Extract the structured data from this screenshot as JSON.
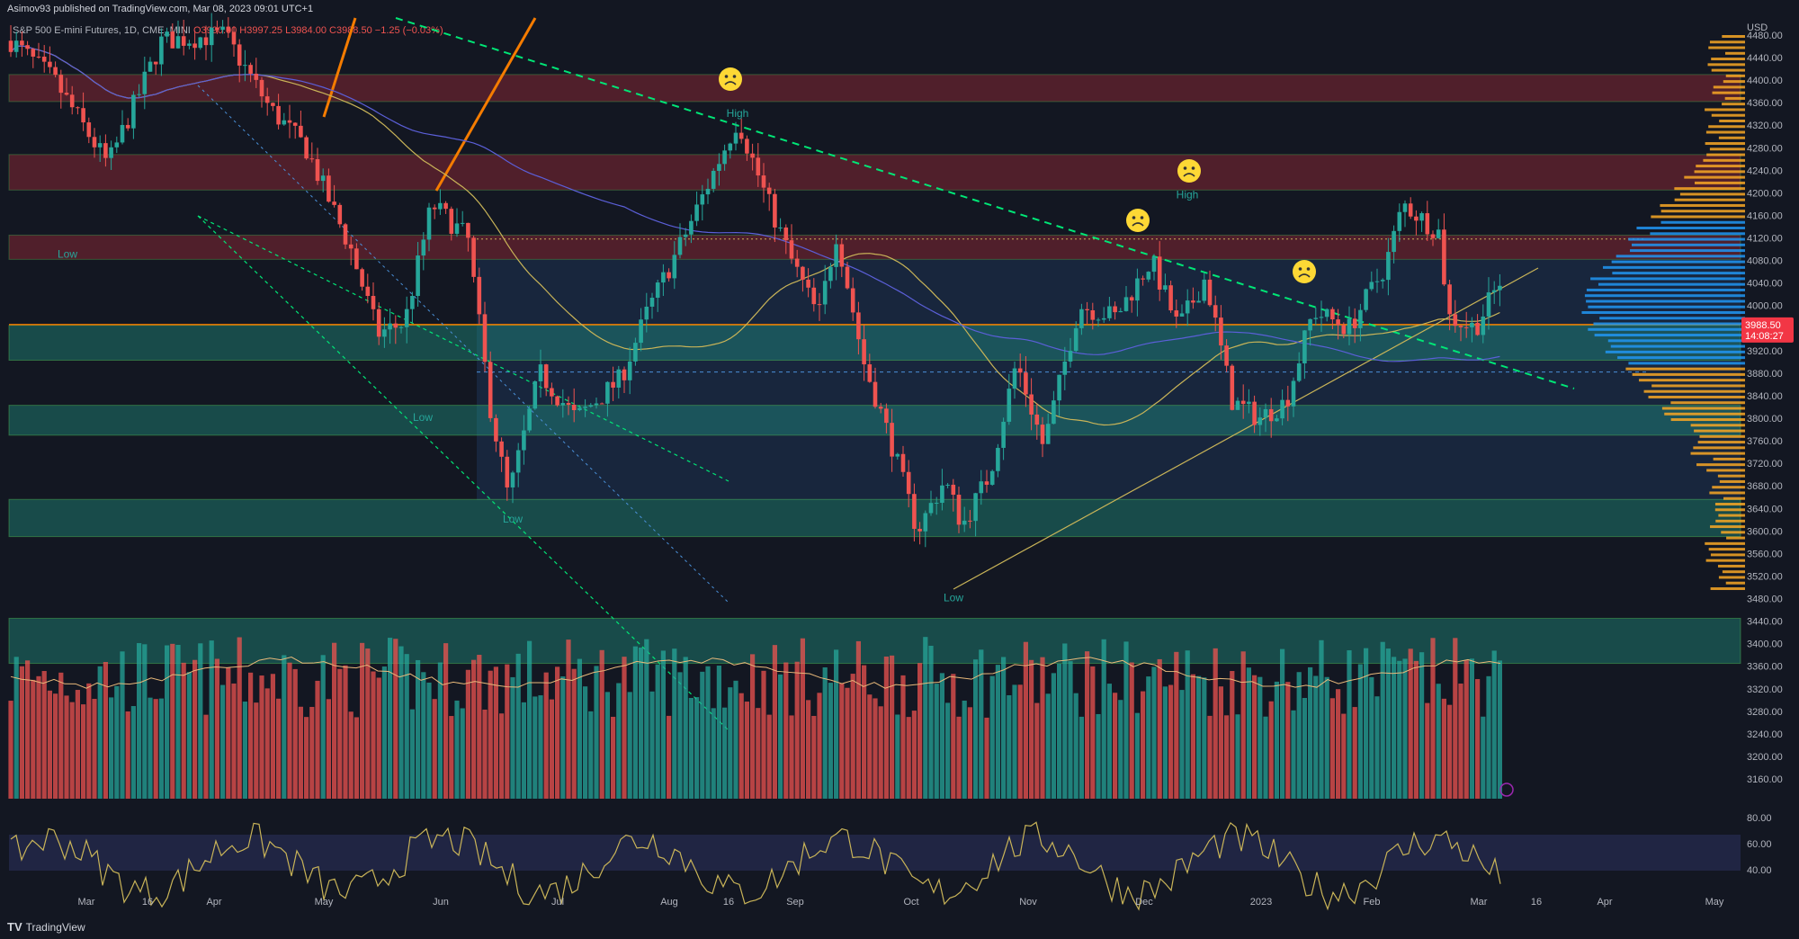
{
  "header": {
    "published": "Asimov93 published on TradingView.com, Mar 08, 2023 09:01 UTC+1"
  },
  "legend": {
    "symbol": "S&P 500 E-mini Futures, 1D, CME_MINI",
    "ohlc": "O3990.00 H3997.25 L3984.00 C3988.50 −1.25 (−0.03%)"
  },
  "footer": {
    "brand": "TradingView",
    "logo": "TV"
  },
  "price_badge": {
    "price": "3988.50",
    "countdown": "14:08:27"
  },
  "colors": {
    "background": "#131722",
    "bull": "#26a69a",
    "bear": "#ef5350",
    "supply_zone": "#f23645",
    "demand_zone": "#22ab94",
    "trendline": "#00e676",
    "ma_fast": "#c9b458",
    "ma_slow": "#5b5fd8",
    "price_line": "#f57c00"
  },
  "icons": [
    "frown-face-icon",
    "lightning-icon",
    "tradingview-logo-icon"
  ],
  "chart_data": {
    "type": "candlestick",
    "panes": [
      "price",
      "volume",
      "oscillator"
    ],
    "currency": "USD",
    "x_ticks": [
      "Mar",
      "16",
      "Apr",
      "May",
      "Jun",
      "Jul",
      "Aug",
      "16",
      "Sep",
      "Oct",
      "Nov",
      "Dec",
      "2023",
      "Feb",
      "Mar",
      "16",
      "Apr",
      "May"
    ],
    "y_ticks": [
      4480,
      4440,
      4400,
      4360,
      4320,
      4280,
      4240,
      4200,
      4160,
      4120,
      4080,
      4040,
      4000,
      3960,
      3920,
      3880,
      3840,
      3800,
      3760,
      3720,
      3680,
      3640,
      3600,
      3560,
      3520,
      3480,
      3440,
      3400,
      3360,
      3320,
      3280,
      3240,
      3200,
      3160
    ],
    "osc_ticks": [
      80,
      60,
      40
    ],
    "ylim": [
      3140,
      4500
    ],
    "last_price": 3988.5,
    "supply_zones": [
      [
        4362,
        4410
      ],
      [
        4205,
        4268
      ],
      [
        4082,
        4125
      ]
    ],
    "demand_zones": [
      [
        3903,
        3965
      ],
      [
        3770,
        3823
      ],
      [
        3590,
        3656
      ],
      [
        3365,
        3445
      ]
    ],
    "range_box": [
      3655,
      4082
    ],
    "volume_profile": "right-side",
    "annotations": [
      {
        "text": "High",
        "price": 4335
      },
      {
        "text": "High",
        "price": 4190
      },
      {
        "text": "Low",
        "price": 4085
      },
      {
        "text": "Low",
        "price": 3795
      },
      {
        "text": "Low",
        "price": 3615
      },
      {
        "text": "Low",
        "price": 3475
      }
    ],
    "sad_markers": 4
  }
}
